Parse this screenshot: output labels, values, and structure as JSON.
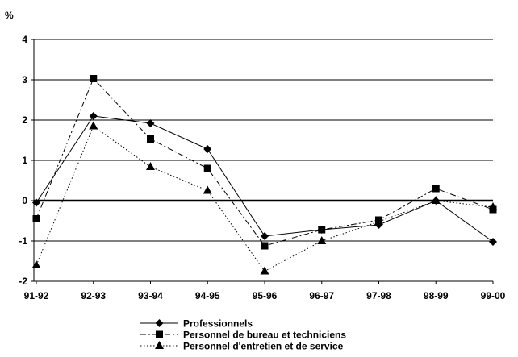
{
  "chart_data": {
    "type": "line",
    "title": "",
    "ylabel": "%",
    "xlabel": "",
    "categories": [
      "91-92",
      "92-93",
      "93-94",
      "94-95",
      "95-96",
      "96-97",
      "97-98",
      "98-99",
      "99-00"
    ],
    "ylim": [
      -2,
      4
    ],
    "yticks": [
      -2,
      -1,
      0,
      1,
      2,
      3,
      4
    ],
    "grid": "horizontal",
    "legend_position": "bottom",
    "series": [
      {
        "name": "Professionnels",
        "marker": "diamond",
        "line": "solid",
        "values": [
          -0.05,
          2.1,
          1.92,
          1.28,
          -0.88,
          -0.72,
          -0.6,
          0.0,
          -1.02
        ]
      },
      {
        "name": "Personnel de bureau et techniciens",
        "marker": "square",
        "line": "dashdot",
        "values": [
          -0.45,
          3.03,
          1.53,
          0.8,
          -1.12,
          -0.72,
          -0.48,
          0.3,
          -0.22
        ]
      },
      {
        "name": "Personnel d'entretien et de service",
        "marker": "triangle",
        "line": "dotted",
        "values": [
          -1.6,
          1.85,
          0.84,
          0.25,
          -1.75,
          -1.0,
          -0.52,
          0.0,
          -0.16
        ]
      }
    ]
  }
}
